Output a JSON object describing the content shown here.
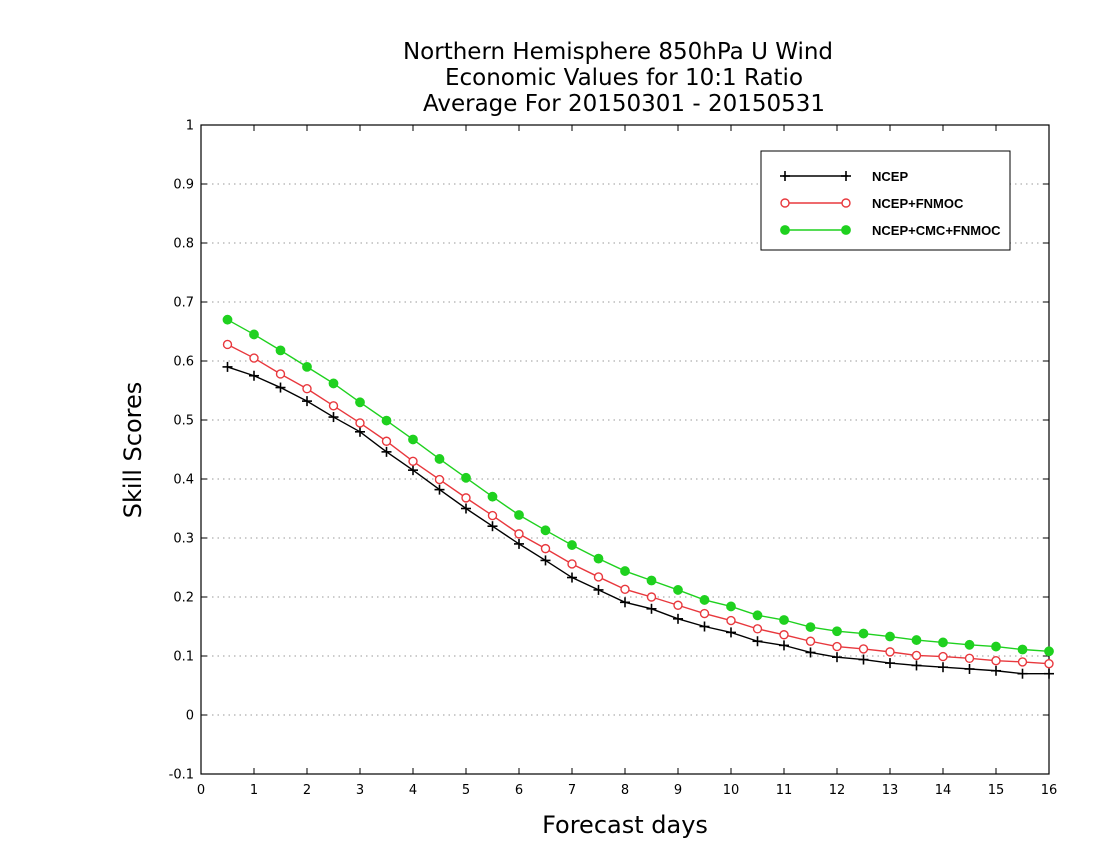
{
  "chart_data": {
    "type": "line",
    "title": [
      "Northern Hemisphere 850hPa U Wind",
      "Economic Values for 10:1 Ratio",
      "Average For 20150301 - 20150531"
    ],
    "xlabel": "Forecast days",
    "ylabel": "Skill Scores",
    "xlim": [
      0,
      16
    ],
    "ylim": [
      -0.1,
      1
    ],
    "xticks": [
      "0",
      "1",
      "2",
      "3",
      "4",
      "5",
      "6",
      "7",
      "8",
      "9",
      "10",
      "11",
      "12",
      "13",
      "14",
      "15",
      "16"
    ],
    "yticks": [
      "-0.1",
      "0",
      "0.1",
      "0.2",
      "0.3",
      "0.4",
      "0.5",
      "0.6",
      "0.7",
      "0.8",
      "0.9",
      "1"
    ],
    "grid": true,
    "legend_position": "top-right",
    "x": [
      0.5,
      1,
      1.5,
      2,
      2.5,
      3,
      3.5,
      4,
      4.5,
      5,
      5.5,
      6,
      6.5,
      7,
      7.5,
      8,
      8.5,
      9,
      9.5,
      10,
      10.5,
      11,
      11.5,
      12,
      12.5,
      13,
      13.5,
      14,
      14.5,
      15,
      15.5,
      16
    ],
    "series": [
      {
        "name": "NCEP",
        "color": "#000000",
        "marker": "plus",
        "values": [
          0.59,
          0.575,
          0.555,
          0.532,
          0.505,
          0.48,
          0.446,
          0.415,
          0.382,
          0.35,
          0.32,
          0.29,
          0.262,
          0.233,
          0.212,
          0.191,
          0.18,
          0.163,
          0.15,
          0.14,
          0.125,
          0.118,
          0.106,
          0.098,
          0.094,
          0.088,
          0.084,
          0.081,
          0.078,
          0.075,
          0.07,
          0.07
        ]
      },
      {
        "name": "NCEP+FNMOC",
        "color": "#e8383d",
        "marker": "open-circle",
        "values": [
          0.628,
          0.605,
          0.578,
          0.553,
          0.524,
          0.495,
          0.464,
          0.43,
          0.399,
          0.368,
          0.338,
          0.307,
          0.282,
          0.256,
          0.234,
          0.213,
          0.2,
          0.186,
          0.172,
          0.16,
          0.146,
          0.136,
          0.125,
          0.116,
          0.112,
          0.107,
          0.101,
          0.099,
          0.096,
          0.092,
          0.09,
          0.087
        ]
      },
      {
        "name": "NCEP+CMC+FNMOC",
        "color": "#1fd11f",
        "marker": "filled-circle",
        "values": [
          0.67,
          0.645,
          0.618,
          0.59,
          0.562,
          0.53,
          0.499,
          0.467,
          0.434,
          0.402,
          0.37,
          0.339,
          0.313,
          0.288,
          0.265,
          0.244,
          0.228,
          0.212,
          0.195,
          0.184,
          0.169,
          0.161,
          0.149,
          0.142,
          0.138,
          0.133,
          0.127,
          0.123,
          0.119,
          0.116,
          0.111,
          0.108
        ]
      }
    ]
  }
}
